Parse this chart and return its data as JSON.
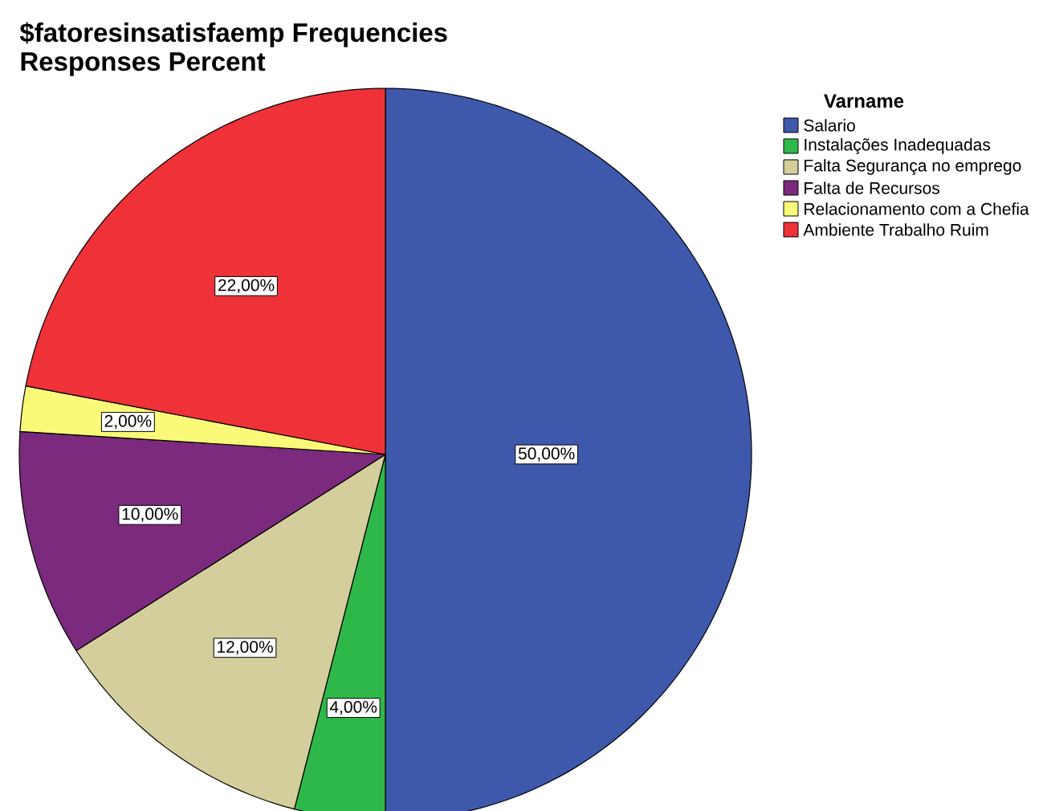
{
  "chart_data": {
    "type": "pie",
    "title": "$fatoresinsatisfaemp Frequencies",
    "subtitle": "Responses Percent",
    "legend_title": "Varname",
    "categories": [
      "Salario",
      "Instalações Inadequadas",
      "Falta Segurança no emprego",
      "Falta de Recursos",
      "Relacionamento com a Chefia",
      "Ambiente Trabalho Ruim"
    ],
    "values": [
      50,
      4,
      12,
      10,
      2,
      22
    ],
    "colors": [
      "#3e58ac",
      "#2fb84a",
      "#d3ce9b",
      "#7b2a7d",
      "#fafa78",
      "#ee3238"
    ],
    "value_labels": [
      "50,00%",
      "4,00%",
      "12,00%",
      "10,00%",
      "2,00%",
      "22,00%"
    ],
    "legend": "top right"
  }
}
